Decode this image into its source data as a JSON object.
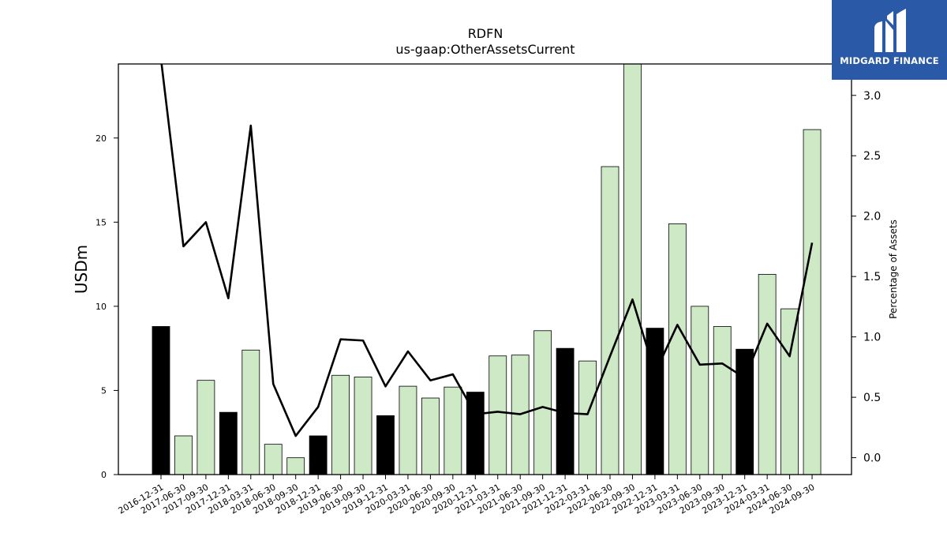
{
  "chart_data": {
    "type": "bar+line",
    "title": "RDFN",
    "subtitle": "us-gaap:OtherAssetsCurrent",
    "ylabel": "USDm",
    "y2label": "Percentage of Assets",
    "ylim": [
      0,
      24.4
    ],
    "y2lim": [
      -0.14,
      3.26
    ],
    "yticks": [
      0,
      5,
      10,
      15,
      20
    ],
    "y2ticks": [
      0.0,
      0.5,
      1.0,
      1.5,
      2.0,
      2.5,
      3.0
    ],
    "y2ticklabels": [
      "0.0",
      "0.5",
      "1.0",
      "1.5",
      "2.0",
      "2.5",
      "3.0"
    ],
    "grid": false,
    "bar_colors": {
      "annual": "#000000",
      "quarter": "#cde9c6"
    },
    "categories": [
      "2016-12-31",
      "2017-06-30",
      "2017-09-30",
      "2017-12-31",
      "2018-03-31",
      "2018-06-30",
      "2018-09-30",
      "2018-12-31",
      "2019-06-30",
      "2019-09-30",
      "2019-12-31",
      "2020-03-31",
      "2020-06-30",
      "2020-09-30",
      "2020-12-31",
      "2021-03-31",
      "2021-06-30",
      "2021-09-30",
      "2021-12-31",
      "2022-03-31",
      "2022-06-30",
      "2022-09-30",
      "2022-12-31",
      "2023-03-31",
      "2023-06-30",
      "2023-09-30",
      "2023-12-31",
      "2024-03-31",
      "2024-06-30",
      "2024-09-30"
    ],
    "series": [
      {
        "type": "bar",
        "values": [
          8.8,
          2.3,
          5.6,
          3.7,
          7.4,
          1.8,
          1.0,
          2.3,
          5.9,
          5.8,
          3.5,
          5.25,
          4.55,
          5.2,
          4.9,
          7.05,
          7.1,
          8.55,
          7.5,
          6.75,
          18.3,
          24.4,
          8.7,
          14.9,
          10.0,
          8.8,
          7.45,
          11.9,
          9.85,
          20.5
        ],
        "is_annual": [
          true,
          false,
          false,
          true,
          false,
          false,
          false,
          true,
          false,
          false,
          true,
          false,
          false,
          false,
          true,
          false,
          false,
          false,
          true,
          false,
          false,
          false,
          true,
          false,
          false,
          false,
          true,
          false,
          false,
          false
        ]
      },
      {
        "type": "line",
        "axis": "right",
        "color": "#000000",
        "values": [
          3.3,
          1.75,
          1.95,
          1.32,
          2.75,
          0.61,
          0.18,
          0.42,
          0.98,
          0.97,
          0.59,
          0.88,
          0.64,
          0.69,
          0.36,
          0.38,
          0.36,
          0.42,
          0.37,
          0.36,
          0.84,
          1.31,
          0.7,
          1.1,
          0.77,
          0.78,
          0.66,
          1.11,
          0.84,
          1.78
        ]
      }
    ]
  },
  "logo": {
    "text": "MIDGARD FINANCE"
  }
}
